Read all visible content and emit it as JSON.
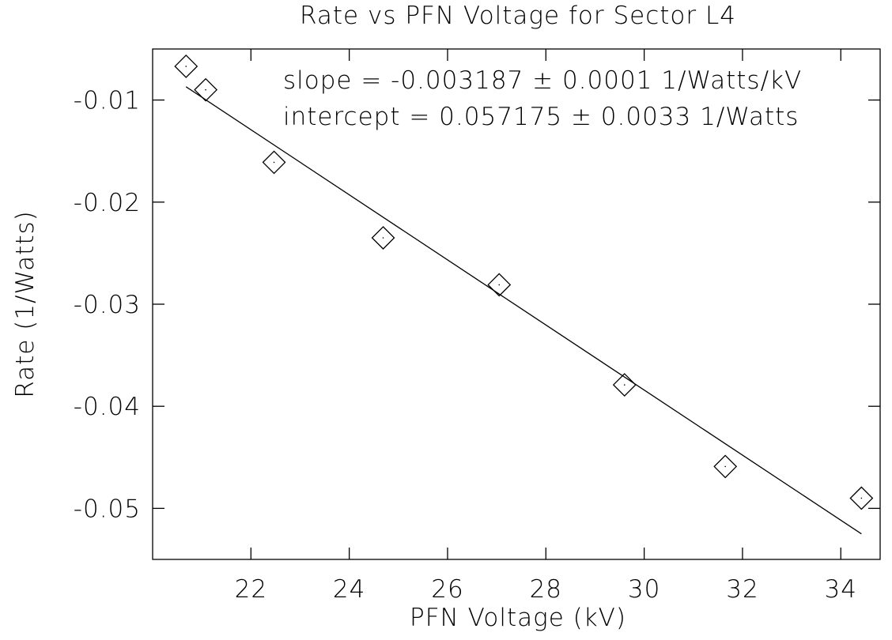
{
  "chart_data": {
    "type": "scatter",
    "title": "Rate vs PFN Voltage for Sector L4",
    "x_label": "PFN Voltage (kV)",
    "y_label": "Rate (1/Watts)",
    "annotations": [
      "slope = -0.003187 ± 0.0001 1/Watts/kV",
      "intercept = 0.057175 ± 0.0033 1/Watts"
    ],
    "x": [
      20.68,
      21.08,
      22.47,
      24.69,
      27.05,
      29.6,
      31.65,
      34.42
    ],
    "values": [
      -0.0067,
      -0.009,
      -0.0161,
      -0.0235,
      -0.0281,
      -0.0379,
      -0.0459,
      -0.049
    ],
    "fit": {
      "x": [
        20.68,
        34.42
      ],
      "values": [
        -0.0087,
        -0.0525
      ]
    },
    "color": "#000000",
    "xlim": [
      20,
      34.8
    ],
    "xticks": [
      22,
      24,
      26,
      28,
      30,
      32,
      34
    ],
    "ylim": [
      -0.055,
      -0.005
    ],
    "yticks": [
      -0.01,
      -0.02,
      -0.03,
      -0.04,
      -0.05
    ],
    "grid": false
  }
}
